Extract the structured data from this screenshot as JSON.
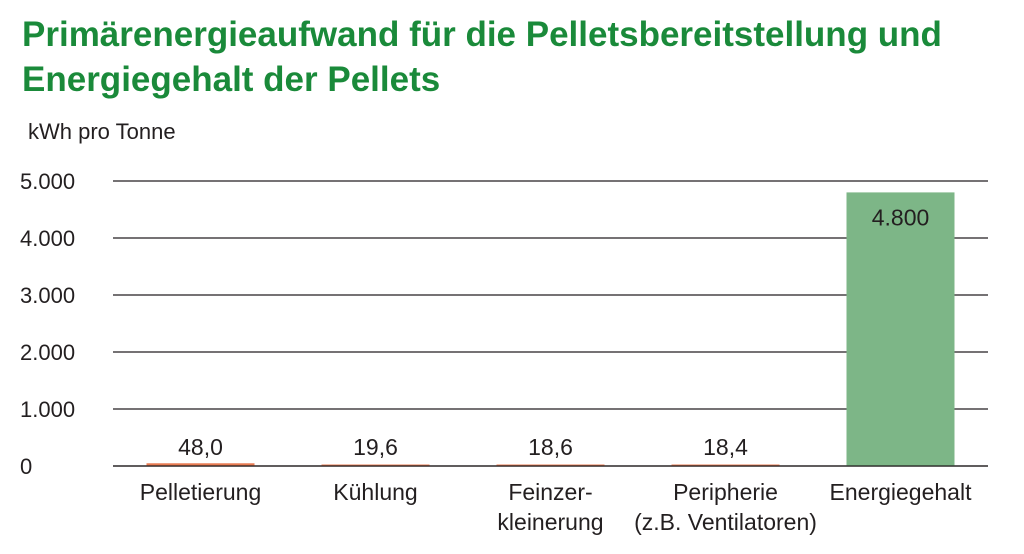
{
  "title": {
    "line1": "Primärenergieaufwand für die Pelletsbereitstellung und",
    "line2": "Energiegehalt der Pellets"
  },
  "chart_data": {
    "type": "bar",
    "title": "Primärenergieaufwand für die Pelletsbereitstellung und Energiegehalt der Pellets",
    "ylabel": "kWh pro Tonne",
    "xlabel": "",
    "ylim": [
      0,
      5000
    ],
    "yticks": [
      0,
      1000,
      2000,
      3000,
      4000,
      5000
    ],
    "ytick_labels": [
      "0",
      "1.000",
      "2.000",
      "3.000",
      "4.000",
      "5.000"
    ],
    "grid": true,
    "categories": [
      [
        "Pelletierung"
      ],
      [
        "Kühlung"
      ],
      [
        "Feinzer-",
        "kleinerung"
      ],
      [
        "Peripherie",
        "(z.B. Ventilatoren)"
      ],
      [
        "Energiegehalt"
      ]
    ],
    "values": [
      48.0,
      19.6,
      18.6,
      18.4,
      4800
    ],
    "value_labels": [
      "48,0",
      "19,6",
      "18,6",
      "18,4",
      "4.800"
    ],
    "colors": [
      "#e87b52",
      "#e87b52",
      "#e87b52",
      "#e87b52",
      "#7db687"
    ]
  }
}
